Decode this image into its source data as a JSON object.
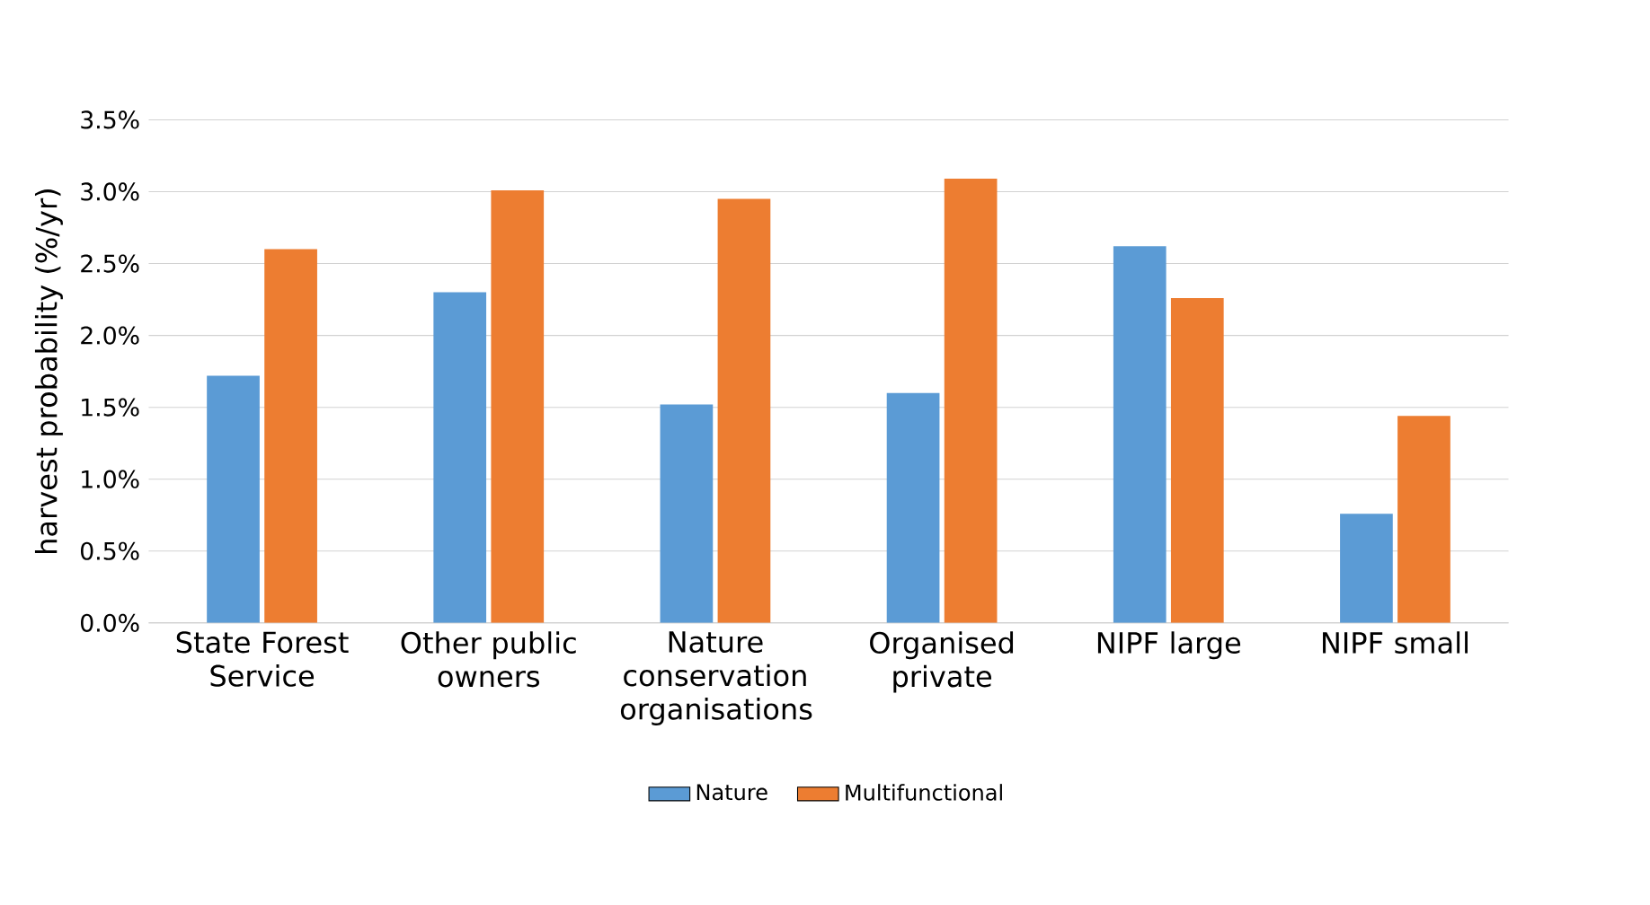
{
  "chart_data": {
    "type": "bar",
    "ylabel": "harvest probability (%/yr)",
    "categories": [
      "State Forest Service",
      "Other public owners",
      "Nature conservation organisations",
      "Organised private",
      "NIPF large",
      "NIPF small"
    ],
    "series": [
      {
        "name": "Nature",
        "color": "#5b9bd5",
        "values": [
          1.72,
          2.3,
          1.52,
          1.6,
          2.62,
          0.76
        ]
      },
      {
        "name": "Multifunctional",
        "color": "#ed7d31",
        "values": [
          2.6,
          3.01,
          2.95,
          3.09,
          2.26,
          1.44
        ]
      }
    ],
    "ylim": [
      0,
      3.5
    ],
    "yticks": [
      {
        "value": 0,
        "label": "0.0%"
      },
      {
        "value": 0.5,
        "label": "0.5%"
      },
      {
        "value": 1,
        "label": "1.0%"
      },
      {
        "value": 1.5,
        "label": "1.5%"
      },
      {
        "value": 2,
        "label": "2.0%"
      },
      {
        "value": 2.5,
        "label": "2.5%"
      },
      {
        "value": 3,
        "label": "3.0%"
      },
      {
        "value": 3.5,
        "label": "3.5%"
      }
    ],
    "grid": "y",
    "legend": "bottom"
  }
}
